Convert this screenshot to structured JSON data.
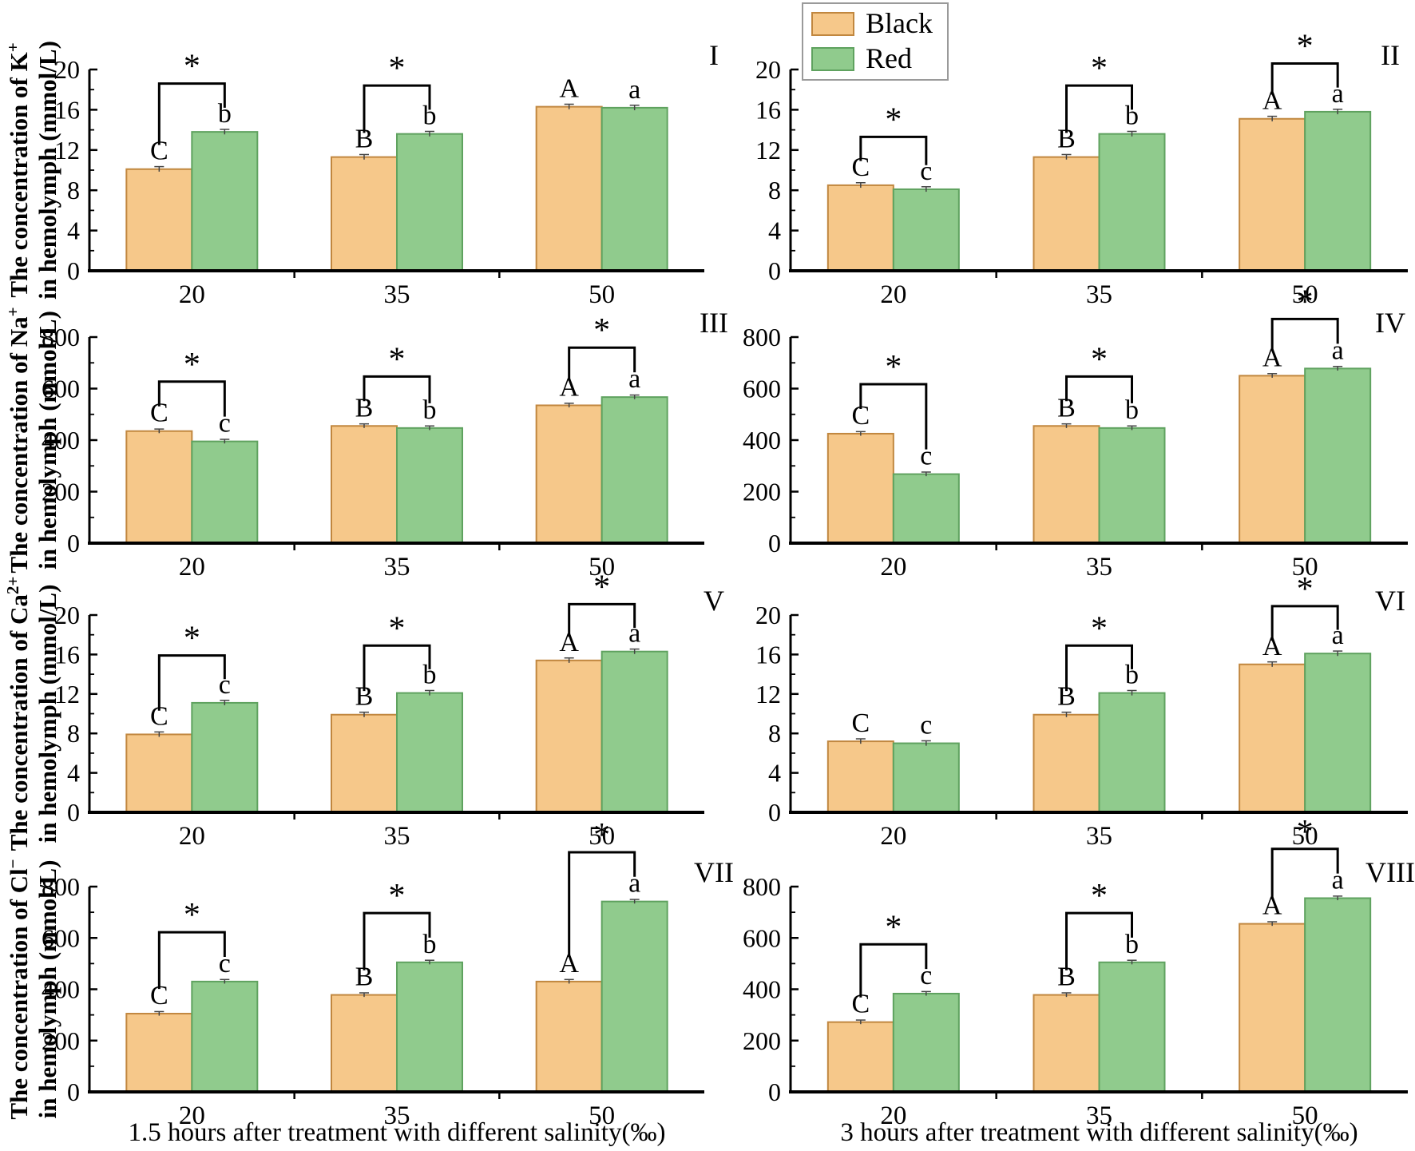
{
  "legend": {
    "items": [
      {
        "label": "Black",
        "color": "#F6C88A",
        "edge": "#C1873F"
      },
      {
        "label": "Red",
        "color": "#90CB8D",
        "edge": "#5FA25F"
      }
    ]
  },
  "x_titles": [
    "1.5 hours after treatment with different salinity(‰)",
    "3 hours after treatment with different salinity(‰)"
  ],
  "axis": {
    "ylabel_prefix": "The concentration of ",
    "ylabel_line2": "in hemolymph (mmol/L)",
    "err_color": "#444444",
    "spine_color": "#000000"
  },
  "chart_data": [
    {
      "type": "bar",
      "panel": "I",
      "row": 0,
      "col": 0,
      "ion_base": "K",
      "ion_sup": "+",
      "categories": [
        "20",
        "35",
        "50"
      ],
      "series": [
        {
          "name": "Black",
          "values": [
            10.1,
            11.3,
            16.3
          ],
          "letters": [
            "C",
            "B",
            "A"
          ]
        },
        {
          "name": "Red",
          "values": [
            13.8,
            13.6,
            16.2
          ],
          "letters": [
            "b",
            "b",
            "a"
          ]
        }
      ],
      "err": 0.25,
      "ylim": [
        0,
        20
      ],
      "ytick_step": 4,
      "yminor_step": 2,
      "sig_groups": [
        0,
        1
      ]
    },
    {
      "type": "bar",
      "panel": "II",
      "row": 0,
      "col": 1,
      "ion_base": "K",
      "ion_sup": "+",
      "categories": [
        "20",
        "35",
        "50"
      ],
      "series": [
        {
          "name": "Black",
          "values": [
            8.5,
            11.3,
            15.1
          ],
          "letters": [
            "C",
            "B",
            "A"
          ]
        },
        {
          "name": "Red",
          "values": [
            8.1,
            13.6,
            15.8
          ],
          "letters": [
            "c",
            "b",
            "a"
          ]
        }
      ],
      "err": 0.25,
      "ylim": [
        0,
        20
      ],
      "ytick_step": 4,
      "yminor_step": 2,
      "sig_groups": [
        0,
        1,
        2
      ]
    },
    {
      "type": "bar",
      "panel": "III",
      "row": 1,
      "col": 0,
      "ion_base": "Na",
      "ion_sup": "+",
      "categories": [
        "20",
        "35",
        "50"
      ],
      "series": [
        {
          "name": "Black",
          "values": [
            435,
            455,
            535
          ],
          "letters": [
            "C",
            "B",
            "A"
          ]
        },
        {
          "name": "Red",
          "values": [
            395,
            447,
            567
          ],
          "letters": [
            "c",
            "b",
            "a"
          ]
        }
      ],
      "err": 8,
      "ylim": [
        0,
        800
      ],
      "ytick_step": 200,
      "yminor_step": 100,
      "sig_groups": [
        0,
        1,
        2
      ]
    },
    {
      "type": "bar",
      "panel": "IV",
      "row": 1,
      "col": 1,
      "ion_base": "Na",
      "ion_sup": "+",
      "categories": [
        "20",
        "35",
        "50"
      ],
      "series": [
        {
          "name": "Black",
          "values": [
            425,
            455,
            650
          ],
          "letters": [
            "C",
            "B",
            "A"
          ]
        },
        {
          "name": "Red",
          "values": [
            268,
            447,
            678
          ],
          "letters": [
            "c",
            "b",
            "a"
          ]
        }
      ],
      "err": 8,
      "ylim": [
        0,
        800
      ],
      "ytick_step": 200,
      "yminor_step": 100,
      "sig_groups": [
        0,
        1,
        2
      ]
    },
    {
      "type": "bar",
      "panel": "V",
      "row": 2,
      "col": 0,
      "ion_base": "Ca",
      "ion_sup": "2+",
      "categories": [
        "20",
        "35",
        "50"
      ],
      "series": [
        {
          "name": "Black",
          "values": [
            7.9,
            9.9,
            15.4
          ],
          "letters": [
            "C",
            "B",
            "A"
          ]
        },
        {
          "name": "Red",
          "values": [
            11.1,
            12.1,
            16.3
          ],
          "letters": [
            "c",
            "b",
            "a"
          ]
        }
      ],
      "err": 0.25,
      "ylim": [
        0,
        20
      ],
      "ytick_step": 4,
      "yminor_step": 2,
      "sig_groups": [
        0,
        1,
        2
      ]
    },
    {
      "type": "bar",
      "panel": "VI",
      "row": 2,
      "col": 1,
      "ion_base": "Ca",
      "ion_sup": "2+",
      "categories": [
        "20",
        "35",
        "50"
      ],
      "series": [
        {
          "name": "Black",
          "values": [
            7.2,
            9.9,
            15.0
          ],
          "letters": [
            "C",
            "B",
            "A"
          ]
        },
        {
          "name": "Red",
          "values": [
            7.0,
            12.1,
            16.1
          ],
          "letters": [
            "c",
            "b",
            "a"
          ]
        }
      ],
      "err": 0.25,
      "ylim": [
        0,
        20
      ],
      "ytick_step": 4,
      "yminor_step": 2,
      "sig_groups": [
        1,
        2
      ]
    },
    {
      "type": "bar",
      "panel": "VII",
      "row": 3,
      "col": 0,
      "ion_base": "Cl",
      "ion_sup": "−",
      "categories": [
        "20",
        "35",
        "50"
      ],
      "series": [
        {
          "name": "Black",
          "values": [
            305,
            378,
            430
          ],
          "letters": [
            "C",
            "B",
            "A"
          ]
        },
        {
          "name": "Red",
          "values": [
            430,
            505,
            742
          ],
          "letters": [
            "c",
            "b",
            "a"
          ]
        }
      ],
      "err": 8,
      "ylim": [
        0,
        800
      ],
      "ytick_step": 200,
      "yminor_step": 100,
      "sig_groups": [
        0,
        1,
        2
      ]
    },
    {
      "type": "bar",
      "panel": "VIII",
      "row": 3,
      "col": 1,
      "ion_base": "Cl",
      "ion_sup": "−",
      "categories": [
        "20",
        "35",
        "50"
      ],
      "series": [
        {
          "name": "Black",
          "values": [
            272,
            378,
            655
          ],
          "letters": [
            "C",
            "B",
            "A"
          ]
        },
        {
          "name": "Red",
          "values": [
            383,
            505,
            755
          ],
          "letters": [
            "c",
            "b",
            "a"
          ]
        }
      ],
      "err": 8,
      "ylim": [
        0,
        800
      ],
      "ytick_step": 200,
      "yminor_step": 100,
      "sig_groups": [
        0,
        1,
        2
      ]
    }
  ]
}
